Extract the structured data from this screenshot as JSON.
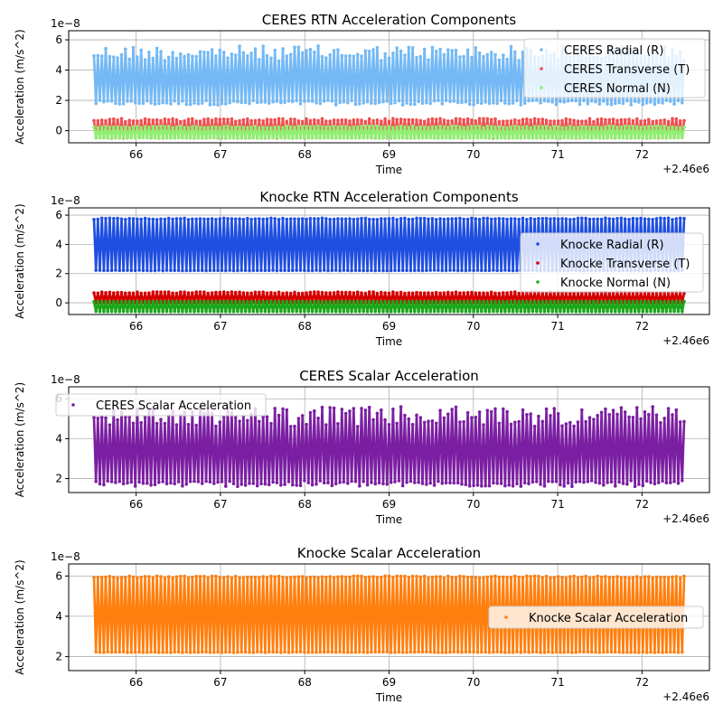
{
  "chart_data": [
    {
      "type": "scatter",
      "title": "CERES RTN Acceleration Components",
      "xlabel": "Time",
      "ylabel": "Acceleration (m/s^2)",
      "x_range": [
        65.5,
        72.5
      ],
      "xlim": [
        65.2,
        72.8
      ],
      "ylim": [
        -0.8,
        6.6
      ],
      "x_ticks": [
        "66",
        "67",
        "68",
        "69",
        "70",
        "71",
        "72"
      ],
      "y_ticks": [
        "0",
        "2",
        "4",
        "6"
      ],
      "y_exponent": "1e−8",
      "x_offset": "+2.46e6",
      "grid": true,
      "legend_position": "upper right",
      "series": [
        {
          "name": "CERES Radial (R)",
          "color": "#74b9f5",
          "min": 1.7,
          "max": 5.6,
          "peak_variation": 0.5
        },
        {
          "name": "CERES Transverse (T)",
          "color": "#f04e4e",
          "min": -0.5,
          "max": 0.8,
          "peak_variation": 0.1
        },
        {
          "name": "CERES Normal (N)",
          "color": "#90ee75",
          "min": -0.5,
          "max": 0.3,
          "peak_variation": 0.05
        }
      ]
    },
    {
      "type": "scatter",
      "title": "Knocke RTN Acceleration Components",
      "xlabel": "Time",
      "ylabel": "Acceleration (m/s^2)",
      "x_range": [
        65.5,
        72.5
      ],
      "xlim": [
        65.2,
        72.8
      ],
      "ylim": [
        -0.8,
        6.5
      ],
      "x_ticks": [
        "66",
        "67",
        "68",
        "69",
        "70",
        "71",
        "72"
      ],
      "y_ticks": [
        "0",
        "2",
        "4",
        "6"
      ],
      "y_exponent": "1e−8",
      "x_offset": "+2.46e6",
      "grid": true,
      "legend_position": "right",
      "series": [
        {
          "name": "Knocke Radial (R)",
          "color": "#1f4fe0",
          "min": 2.2,
          "max": 5.8,
          "peak_variation": 0.05
        },
        {
          "name": "Knocke Transverse (T)",
          "color": "#d40000",
          "min": 0.0,
          "max": 0.75,
          "peak_variation": 0.05
        },
        {
          "name": "Knocke Normal (N)",
          "color": "#1aa81a",
          "min": -0.6,
          "max": 0.1,
          "peak_variation": 0.02
        }
      ]
    },
    {
      "type": "scatter",
      "title": "CERES Scalar Acceleration",
      "xlabel": "Time",
      "ylabel": "Acceleration (m/s^2)",
      "x_range": [
        65.5,
        72.5
      ],
      "xlim": [
        65.2,
        72.8
      ],
      "ylim": [
        1.3,
        6.6
      ],
      "x_ticks": [
        "66",
        "67",
        "68",
        "69",
        "70",
        "71",
        "72"
      ],
      "y_ticks": [
        "2",
        "4",
        "6"
      ],
      "y_exponent": "1e−8",
      "x_offset": "+2.46e6",
      "grid": true,
      "legend_position": "upper left",
      "series": [
        {
          "name": "CERES Scalar Acceleration",
          "color": "#7b1fa2",
          "min": 1.6,
          "max": 5.6,
          "peak_variation": 0.5
        }
      ]
    },
    {
      "type": "scatter",
      "title": "Knocke Scalar Acceleration",
      "xlabel": "Time",
      "ylabel": "Acceleration (m/s^2)",
      "x_range": [
        65.5,
        72.5
      ],
      "xlim": [
        65.2,
        72.8
      ],
      "ylim": [
        1.3,
        6.6
      ],
      "x_ticks": [
        "66",
        "67",
        "68",
        "69",
        "70",
        "71",
        "72"
      ],
      "y_ticks": [
        "2",
        "4",
        "6"
      ],
      "y_exponent": "1e−8",
      "x_offset": "+2.46e6",
      "grid": true,
      "legend_position": "right",
      "series": [
        {
          "name": "Knocke Scalar Acceleration",
          "color": "#ff7f0e",
          "min": 2.2,
          "max": 6.0,
          "peak_variation": 0.05
        }
      ]
    }
  ]
}
